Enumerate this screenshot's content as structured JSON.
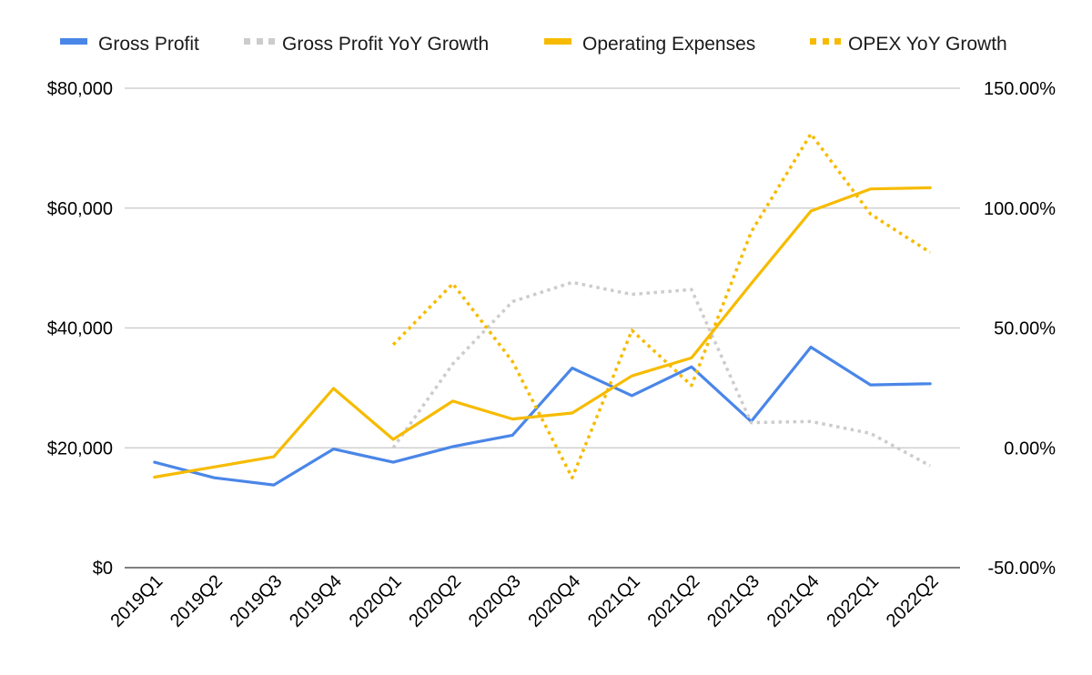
{
  "chart_data": {
    "type": "line",
    "title": "",
    "xlabel": "",
    "ylabel": "",
    "y2label": "",
    "categories": [
      "2019Q1",
      "2019Q2",
      "2019Q3",
      "2019Q4",
      "2020Q1",
      "2020Q2",
      "2020Q3",
      "2020Q4",
      "2021Q1",
      "2021Q2",
      "2021Q3",
      "2021Q4",
      "2022Q1",
      "2022Q2"
    ],
    "ylim": [
      0,
      80000
    ],
    "y_ticks": [
      0,
      20000,
      40000,
      60000,
      80000
    ],
    "y_tick_labels": [
      "$0",
      "$20,000",
      "$40,000",
      "$60,000",
      "$80,000"
    ],
    "y2lim": [
      -50,
      150
    ],
    "y2_ticks": [
      -50,
      0,
      50,
      100,
      150
    ],
    "y2_tick_labels": [
      "-50.00%",
      "0.00%",
      "50.00%",
      "100.00%",
      "150.00%"
    ],
    "grid": true,
    "legend_position": "top",
    "series": [
      {
        "name": "Gross Profit",
        "axis": "left",
        "style": "solid",
        "color": "#4a86e8",
        "values": [
          17600,
          15000,
          13800,
          19800,
          17600,
          20200,
          22100,
          33300,
          28700,
          33500,
          24400,
          36800,
          30500,
          30700
        ]
      },
      {
        "name": "Gross Profit YoY Growth",
        "axis": "right",
        "style": "dotted",
        "color": "#cccccc",
        "values": [
          null,
          null,
          null,
          null,
          0,
          35,
          61,
          69,
          64,
          66,
          10.5,
          11,
          6,
          -7.5
        ]
      },
      {
        "name": "Operating Expenses",
        "axis": "left",
        "style": "solid",
        "color": "#f6bb00",
        "values": [
          15100,
          16800,
          18500,
          29900,
          21400,
          27800,
          24800,
          25800,
          32000,
          35000,
          47400,
          59500,
          63200,
          63400
        ]
      },
      {
        "name": "OPEX YoY Growth",
        "axis": "right",
        "style": "dotted",
        "color": "#f6bb00",
        "values": [
          null,
          null,
          null,
          null,
          43,
          68.5,
          36,
          -12.5,
          49,
          26,
          90,
          131,
          97.5,
          81.5
        ]
      }
    ]
  }
}
